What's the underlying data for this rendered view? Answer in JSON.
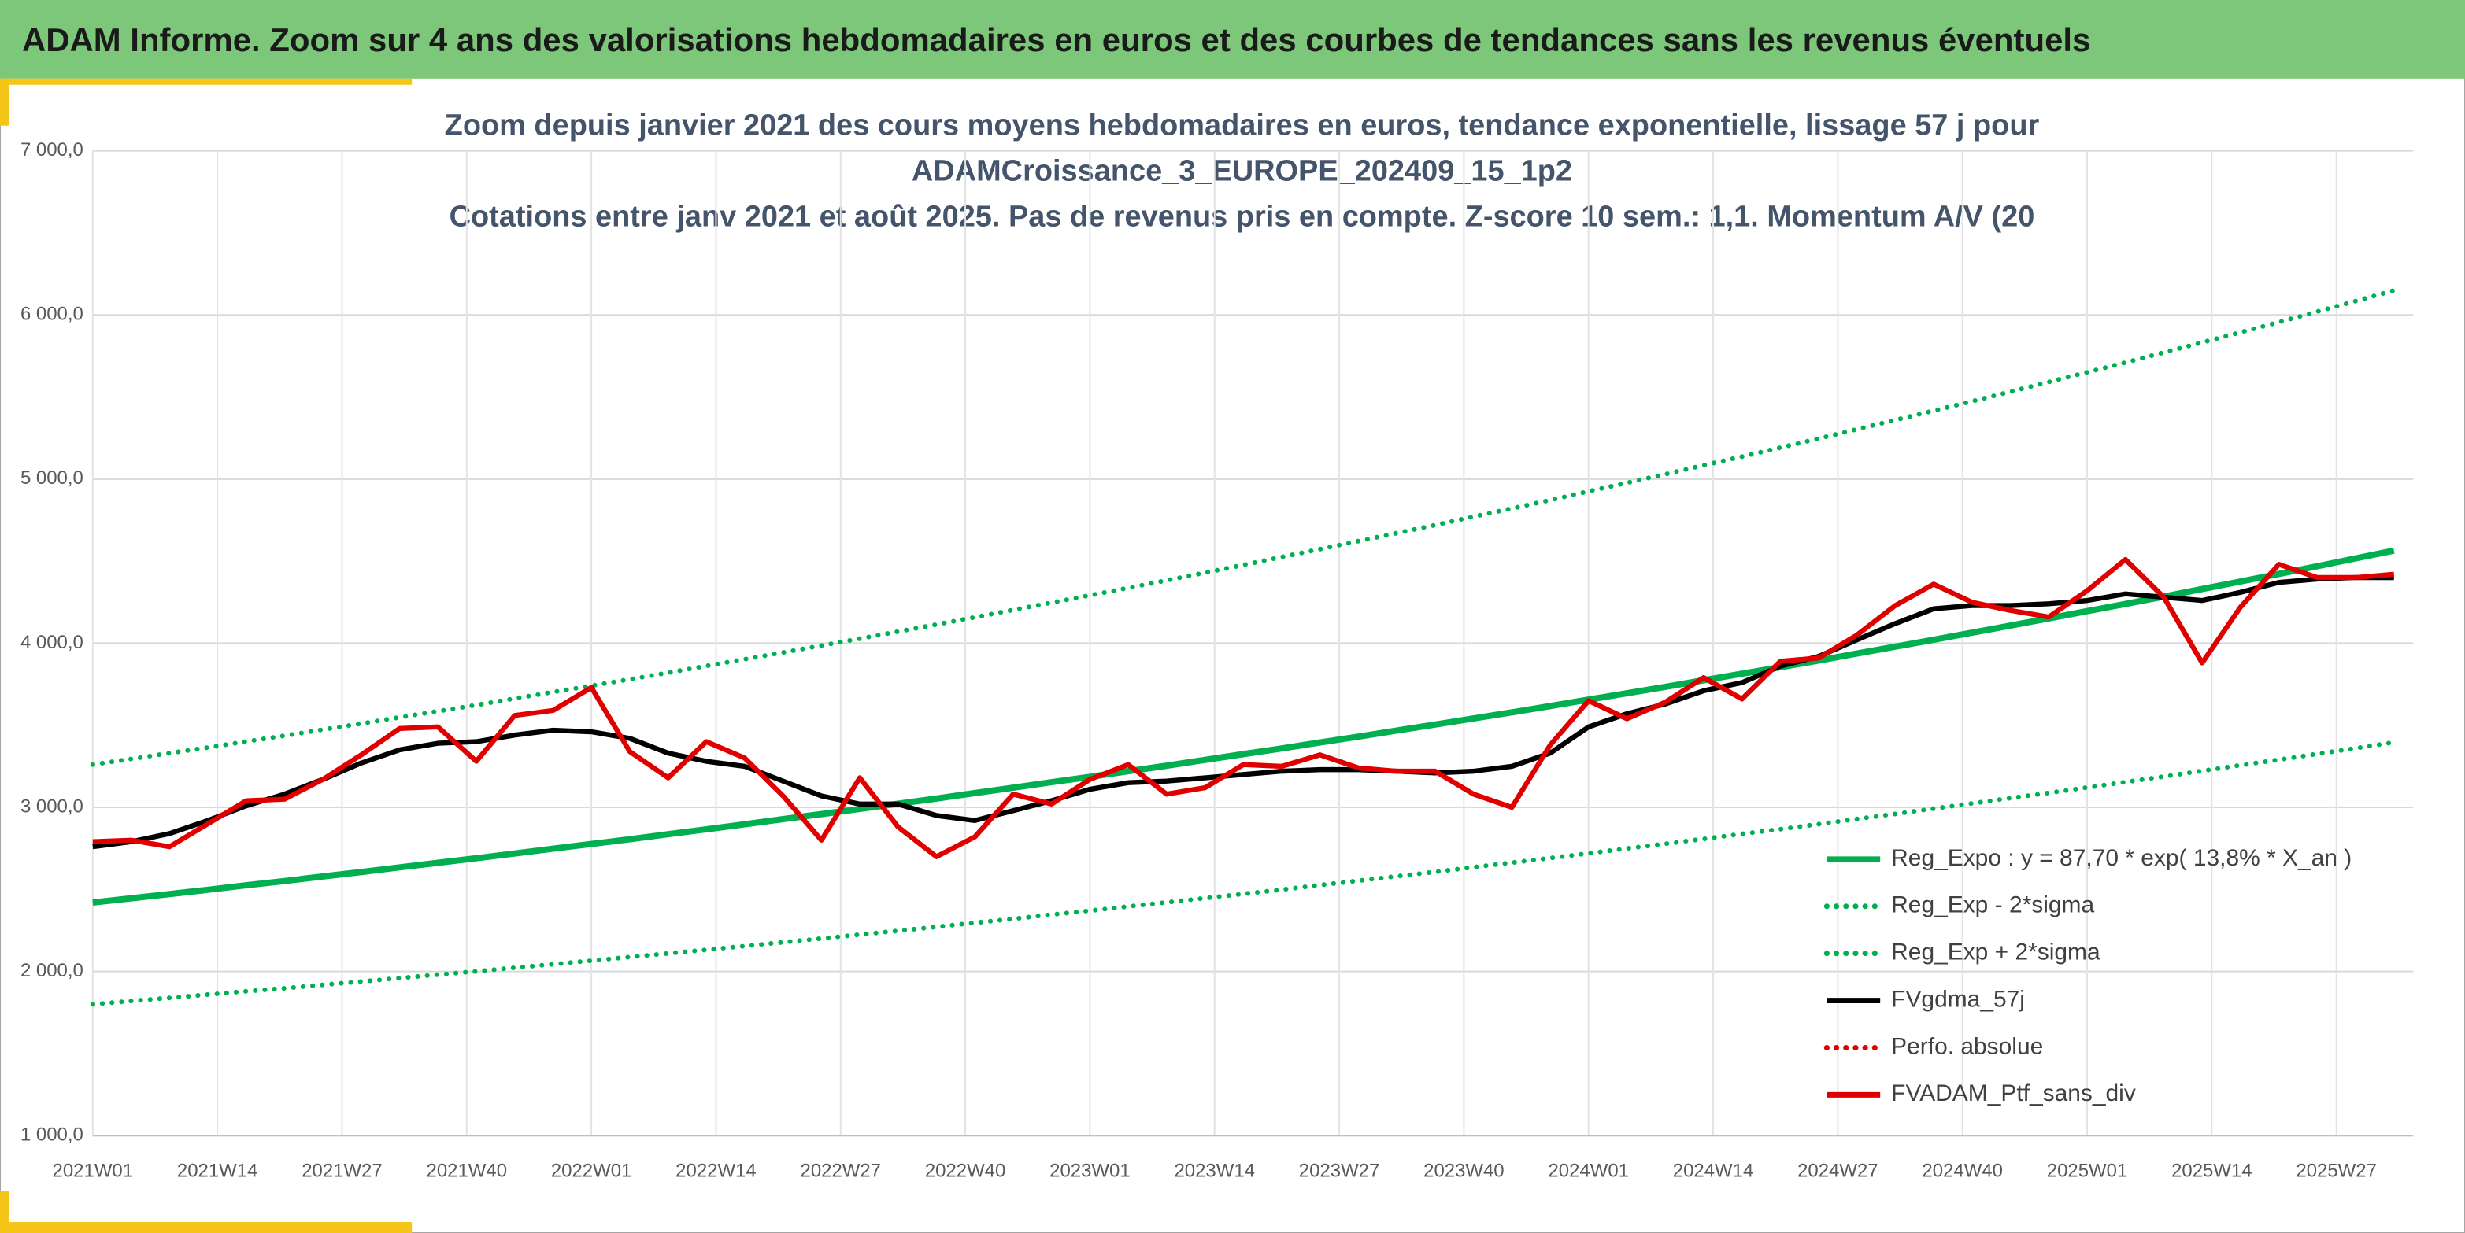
{
  "header": {
    "title": "ADAM Informe. Zoom sur 4 ans des valorisations hebdomadaires en euros et des courbes de tendances sans les revenus éventuels"
  },
  "chart_data": {
    "type": "line",
    "title_lines": [
      "Zoom depuis janvier 2021 des cours moyens hebdomadaires en euros, tendance exponentielle, lissage 57 j pour",
      "ADAMCroissance_3_EUROPE_202409_15_1p2",
      "Cotations entre janv 2021 et août 2025. Pas de revenus pris en compte. Z-score 10 sem.: 1,1. Momentum A/V (20"
    ],
    "x": [
      0,
      4,
      8,
      12,
      16,
      20,
      24,
      28,
      32,
      36,
      40,
      44,
      48,
      52,
      56,
      60,
      64,
      68,
      72,
      76,
      80,
      84,
      88,
      92,
      96,
      100,
      104,
      108,
      112,
      116,
      120,
      124,
      128,
      132,
      136,
      140,
      144,
      148,
      152,
      156,
      160,
      164,
      168,
      172,
      176,
      180,
      184,
      188,
      192,
      196,
      200,
      204,
      208,
      212,
      216,
      220,
      224,
      228,
      232,
      236,
      240
    ],
    "xlim": [
      0,
      242
    ],
    "xticks": [
      {
        "value": 0,
        "label": "2021W01"
      },
      {
        "value": 13,
        "label": "2021W14"
      },
      {
        "value": 26,
        "label": "2021W27"
      },
      {
        "value": 39,
        "label": "2021W40"
      },
      {
        "value": 52,
        "label": "2022W01"
      },
      {
        "value": 65,
        "label": "2022W14"
      },
      {
        "value": 78,
        "label": "2022W27"
      },
      {
        "value": 91,
        "label": "2022W40"
      },
      {
        "value": 104,
        "label": "2023W01"
      },
      {
        "value": 117,
        "label": "2023W14"
      },
      {
        "value": 130,
        "label": "2023W27"
      },
      {
        "value": 143,
        "label": "2023W40"
      },
      {
        "value": 156,
        "label": "2024W01"
      },
      {
        "value": 169,
        "label": "2024W14"
      },
      {
        "value": 182,
        "label": "2024W27"
      },
      {
        "value": 195,
        "label": "2024W40"
      },
      {
        "value": 208,
        "label": "2025W01"
      },
      {
        "value": 221,
        "label": "2025W14"
      },
      {
        "value": 234,
        "label": "2025W27"
      }
    ],
    "ylim": [
      1000,
      7000
    ],
    "yticks": [
      {
        "value": 1000,
        "label": "1 000,0"
      },
      {
        "value": 2000,
        "label": "2 000,0"
      },
      {
        "value": 3000,
        "label": "3 000,0"
      },
      {
        "value": 4000,
        "label": "4 000,0"
      },
      {
        "value": 5000,
        "label": "5 000,0"
      },
      {
        "value": 6000,
        "label": "6 000,0"
      },
      {
        "value": 7000,
        "label": "7 000,0"
      }
    ],
    "grid": true,
    "legend": "lower right",
    "series": [
      {
        "name": "Reg_Expo : y = 87,70 * exp( 13,8% *  X_an )",
        "color": "#00b050",
        "style": "solid",
        "values": [
          2420,
          2446,
          2472,
          2498,
          2525,
          2551,
          2579,
          2606,
          2634,
          2662,
          2690,
          2719,
          2748,
          2777,
          2806,
          2836,
          2866,
          2897,
          2928,
          2959,
          2990,
          3022,
          3054,
          3087,
          3120,
          3153,
          3186,
          3220,
          3254,
          3289,
          3324,
          3359,
          3395,
          3431,
          3468,
          3504,
          3542,
          3579,
          3617,
          3656,
          3695,
          3734,
          3774,
          3814,
          3854,
          3895,
          3937,
          3979,
          4021,
          4064,
          4107,
          4151,
          4195,
          4239,
          4284,
          4330,
          4376,
          4422,
          4469,
          4517,
          4565
        ]
      },
      {
        "name": "Reg_Exp - 2*sigma",
        "color": "#00b050",
        "style": "dotted",
        "values": [
          1800,
          1820,
          1839,
          1859,
          1879,
          1898,
          1919,
          1939,
          1960,
          1981,
          2001,
          2023,
          2044,
          2066,
          2088,
          2110,
          2132,
          2155,
          2178,
          2201,
          2225,
          2248,
          2272,
          2297,
          2321,
          2346,
          2370,
          2396,
          2421,
          2447,
          2473,
          2499,
          2526,
          2553,
          2580,
          2607,
          2635,
          2663,
          2691,
          2720,
          2749,
          2778,
          2808,
          2838,
          2867,
          2898,
          2929,
          2960,
          2992,
          3024,
          3056,
          3088,
          3121,
          3154,
          3188,
          3222,
          3256,
          3290,
          3325,
          3360,
          3396
        ]
      },
      {
        "name": "Reg_Exp + 2*sigma",
        "color": "#00b050",
        "style": "dotted",
        "values": [
          3260,
          3295,
          3330,
          3365,
          3401,
          3436,
          3474,
          3510,
          3548,
          3586,
          3623,
          3663,
          3702,
          3741,
          3780,
          3820,
          3861,
          3902,
          3944,
          3986,
          4028,
          4071,
          4114,
          4158,
          4203,
          4247,
          4292,
          4337,
          4383,
          4430,
          4477,
          4525,
          4573,
          4622,
          4671,
          4720,
          4771,
          4821,
          4872,
          4925,
          4977,
          5030,
          5084,
          5137,
          5191,
          5247,
          5303,
          5360,
          5416,
          5474,
          5532,
          5591,
          5651,
          5710,
          5771,
          5833,
          5894,
          5956,
          6020,
          6084,
          6149
        ]
      },
      {
        "name": "FVgdma_57j",
        "color": "#000000",
        "style": "solid",
        "values": [
          2760,
          2790,
          2840,
          2920,
          3010,
          3080,
          3170,
          3270,
          3350,
          3390,
          3400,
          3440,
          3470,
          3460,
          3420,
          3330,
          3280,
          3250,
          3160,
          3070,
          3020,
          3020,
          2950,
          2920,
          2980,
          3040,
          3110,
          3150,
          3160,
          3180,
          3200,
          3220,
          3230,
          3230,
          3220,
          3210,
          3220,
          3250,
          3330,
          3490,
          3570,
          3630,
          3710,
          3760,
          3860,
          3920,
          4020,
          4120,
          4210,
          4230,
          4230,
          4240,
          4260,
          4300,
          4280,
          4260,
          4310,
          4370,
          4390,
          4400,
          4400
        ]
      },
      {
        "name": "Perfo. absolue",
        "color": "#e00000",
        "style": "dotted"
      },
      {
        "name": "FVADAM_Ptf_sans_div",
        "color": "#e00000",
        "style": "solid",
        "values": [
          2790,
          2800,
          2760,
          2900,
          3040,
          3050,
          3170,
          3320,
          3480,
          3490,
          3280,
          3560,
          3590,
          3730,
          3340,
          3180,
          3400,
          3300,
          3070,
          2800,
          3180,
          2880,
          2700,
          2820,
          3080,
          3020,
          3170,
          3260,
          3080,
          3120,
          3260,
          3250,
          3320,
          3240,
          3220,
          3220,
          3080,
          3000,
          3380,
          3650,
          3540,
          3640,
          3790,
          3660,
          3890,
          3910,
          4050,
          4230,
          4360,
          4250,
          4200,
          4160,
          4320,
          4510,
          4280,
          3880,
          4220,
          4480,
          4400,
          4400,
          4420
        ]
      }
    ]
  }
}
